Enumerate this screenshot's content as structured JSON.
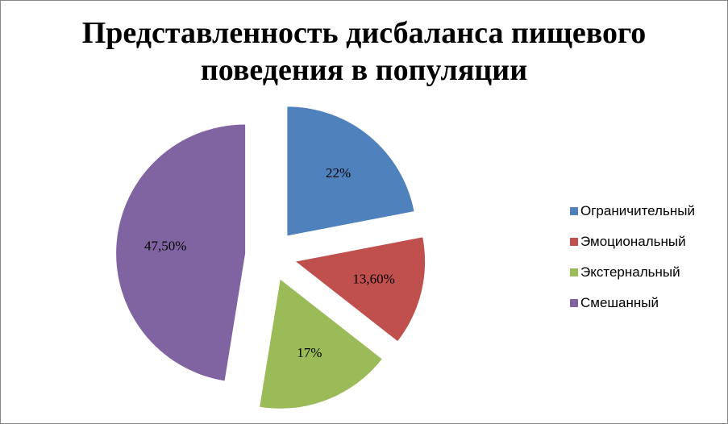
{
  "chart_data": {
    "type": "pie",
    "title": "Представленность дисбаланса пищевого поведения в популяции",
    "title_lines": [
      "Представленность дисбаланса пищевого",
      "поведения в популяции"
    ],
    "legend_position": "right",
    "slices": [
      {
        "name": "Ограничительный",
        "value": 22.0,
        "display": "22%",
        "color": "#4F81BD"
      },
      {
        "name": "Эмоциональный",
        "value": 13.6,
        "display": "13,60%",
        "color": "#C0504D"
      },
      {
        "name": "Экстернальный",
        "value": 17.0,
        "display": "17%",
        "color": "#9BBB59"
      },
      {
        "name": "Смешанный",
        "value": 47.5,
        "display": "47,50%",
        "color": "#8064A2"
      }
    ]
  }
}
